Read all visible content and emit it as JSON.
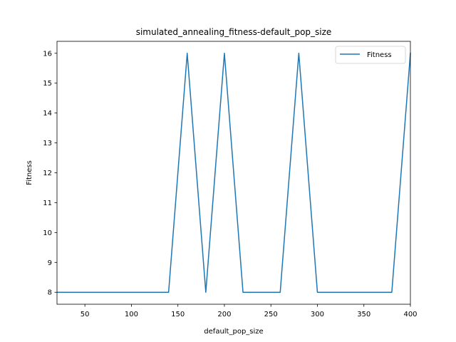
{
  "chart_data": {
    "type": "line",
    "title": "simulated_annealing_fitness-default_pop_size",
    "xlabel": "default_pop_size",
    "ylabel": "Fitness",
    "xlim": [
      20,
      400
    ],
    "ylim": [
      7.6,
      16.4
    ],
    "xticks": [
      50,
      100,
      150,
      200,
      250,
      300,
      350,
      400
    ],
    "yticks": [
      8,
      9,
      10,
      11,
      12,
      13,
      14,
      15,
      16
    ],
    "grid": false,
    "legend_position": "top-right",
    "series": [
      {
        "name": "Fitness",
        "color": "#1f77b4",
        "x": [
          20,
          40,
          60,
          80,
          100,
          120,
          140,
          160,
          180,
          200,
          220,
          240,
          260,
          280,
          300,
          320,
          340,
          360,
          380,
          400
        ],
        "values": [
          8,
          8,
          8,
          8,
          8,
          8,
          8,
          16,
          8,
          16,
          8,
          8,
          8,
          16,
          8,
          8,
          8,
          8,
          8,
          16
        ]
      }
    ]
  }
}
